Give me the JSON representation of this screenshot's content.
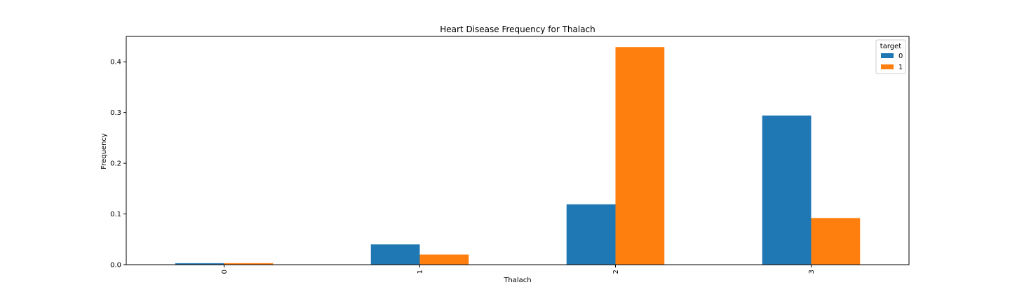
{
  "chart_data": {
    "type": "bar",
    "title": "Heart Disease Frequency for Thalach",
    "xlabel": "Thalach",
    "ylabel": "Frequency",
    "categories": [
      "0",
      "1",
      "2",
      "3"
    ],
    "series": [
      {
        "name": "0",
        "values": [
          0.003,
          0.04,
          0.119,
          0.294
        ]
      },
      {
        "name": "1",
        "values": [
          0.003,
          0.02,
          0.429,
          0.092
        ]
      }
    ],
    "ylim": [
      0,
      0.45
    ],
    "yticks": [
      "0.0",
      "0.1",
      "0.2",
      "0.3",
      "0.4"
    ],
    "legend": {
      "title": "target",
      "placement": "top-right"
    },
    "grid": false,
    "colors": [
      "#1f77b4",
      "#ff7f0e"
    ]
  }
}
